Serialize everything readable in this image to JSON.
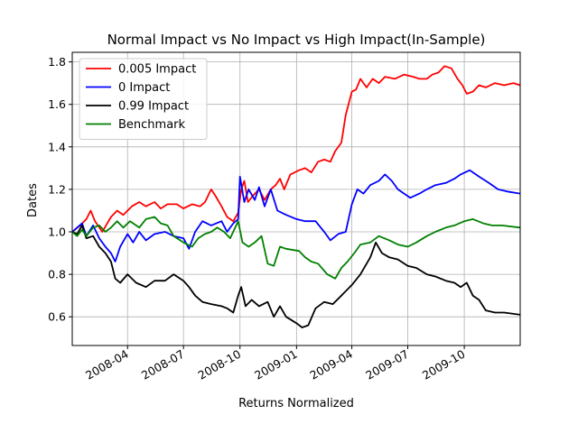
{
  "chart_data": {
    "type": "line",
    "title": "Normal Impact vs No Impact vs High Impact(In-Sample)",
    "xlabel": "Returns Normalized",
    "ylabel": "Dates",
    "xlim": [
      "2008-01-02",
      "2009-12-31"
    ],
    "ylim": [
      0.465,
      1.845
    ],
    "grid": true,
    "legend_position": "top-left",
    "x_tick_labels": [
      "2008-04",
      "2008-07",
      "2008-10",
      "2009-01",
      "2009-04",
      "2009-07",
      "2009-10"
    ],
    "x_tick_dates": [
      "2008-04-01",
      "2008-07-01",
      "2008-10-01",
      "2009-01-01",
      "2009-04-01",
      "2009-07-01",
      "2009-10-01"
    ],
    "y_tick_labels": [
      "0.6",
      "0.8",
      "1.0",
      "1.2",
      "1.4",
      "1.6",
      "1.8"
    ],
    "y_ticks": [
      0.6,
      0.8,
      1.0,
      1.2,
      1.4,
      1.6,
      1.8
    ],
    "series": [
      {
        "name": "0.005 Impact",
        "color": "#ff0000",
        "points": [
          [
            "2008-01-02",
            1.0
          ],
          [
            "2008-01-15",
            1.03
          ],
          [
            "2008-01-25",
            1.06
          ],
          [
            "2008-02-01",
            1.1
          ],
          [
            "2008-02-08",
            1.05
          ],
          [
            "2008-02-20",
            1.0
          ],
          [
            "2008-03-05",
            1.07
          ],
          [
            "2008-03-15",
            1.1
          ],
          [
            "2008-03-25",
            1.08
          ],
          [
            "2008-04-08",
            1.12
          ],
          [
            "2008-04-20",
            1.14
          ],
          [
            "2008-05-01",
            1.12
          ],
          [
            "2008-05-15",
            1.14
          ],
          [
            "2008-05-25",
            1.11
          ],
          [
            "2008-06-05",
            1.13
          ],
          [
            "2008-06-20",
            1.13
          ],
          [
            "2008-07-01",
            1.11
          ],
          [
            "2008-07-15",
            1.13
          ],
          [
            "2008-07-28",
            1.12
          ],
          [
            "2008-08-05",
            1.14
          ],
          [
            "2008-08-15",
            1.2
          ],
          [
            "2008-08-22",
            1.17
          ],
          [
            "2008-09-01",
            1.12
          ],
          [
            "2008-09-10",
            1.07
          ],
          [
            "2008-09-20",
            1.05
          ],
          [
            "2008-09-28",
            1.09
          ],
          [
            "2008-10-03",
            1.2
          ],
          [
            "2008-10-08",
            1.24
          ],
          [
            "2008-10-14",
            1.14
          ],
          [
            "2008-10-22",
            1.17
          ],
          [
            "2008-11-01",
            1.2
          ],
          [
            "2008-11-10",
            1.15
          ],
          [
            "2008-11-20",
            1.2
          ],
          [
            "2008-11-28",
            1.22
          ],
          [
            "2008-12-05",
            1.25
          ],
          [
            "2008-12-12",
            1.2
          ],
          [
            "2008-12-22",
            1.27
          ],
          [
            "2009-01-05",
            1.29
          ],
          [
            "2009-01-15",
            1.3
          ],
          [
            "2009-01-25",
            1.28
          ],
          [
            "2009-02-05",
            1.33
          ],
          [
            "2009-02-15",
            1.34
          ],
          [
            "2009-02-25",
            1.33
          ],
          [
            "2009-03-05",
            1.38
          ],
          [
            "2009-03-15",
            1.42
          ],
          [
            "2009-03-22",
            1.55
          ],
          [
            "2009-04-01",
            1.66
          ],
          [
            "2009-04-08",
            1.67
          ],
          [
            "2009-04-15",
            1.72
          ],
          [
            "2009-04-25",
            1.68
          ],
          [
            "2009-05-05",
            1.72
          ],
          [
            "2009-05-15",
            1.7
          ],
          [
            "2009-05-25",
            1.73
          ],
          [
            "2009-06-10",
            1.72
          ],
          [
            "2009-06-25",
            1.74
          ],
          [
            "2009-07-10",
            1.73
          ],
          [
            "2009-07-20",
            1.72
          ],
          [
            "2009-08-01",
            1.72
          ],
          [
            "2009-08-10",
            1.74
          ],
          [
            "2009-08-20",
            1.75
          ],
          [
            "2009-08-30",
            1.78
          ],
          [
            "2009-09-10",
            1.77
          ],
          [
            "2009-09-20",
            1.72
          ],
          [
            "2009-09-28",
            1.69
          ],
          [
            "2009-10-05",
            1.65
          ],
          [
            "2009-10-15",
            1.66
          ],
          [
            "2009-10-25",
            1.69
          ],
          [
            "2009-11-05",
            1.68
          ],
          [
            "2009-11-20",
            1.7
          ],
          [
            "2009-12-05",
            1.69
          ],
          [
            "2009-12-20",
            1.7
          ],
          [
            "2009-12-31",
            1.69
          ]
        ]
      },
      {
        "name": "0 Impact",
        "color": "#0000ff",
        "points": [
          [
            "2008-01-02",
            1.0
          ],
          [
            "2008-01-10",
            1.02
          ],
          [
            "2008-01-18",
            1.04
          ],
          [
            "2008-01-25",
            0.98
          ],
          [
            "2008-02-05",
            1.03
          ],
          [
            "2008-02-15",
            0.97
          ],
          [
            "2008-02-25",
            0.93
          ],
          [
            "2008-03-05",
            0.9
          ],
          [
            "2008-03-12",
            0.86
          ],
          [
            "2008-03-20",
            0.93
          ],
          [
            "2008-04-01",
            0.99
          ],
          [
            "2008-04-10",
            0.95
          ],
          [
            "2008-04-20",
            1.0
          ],
          [
            "2008-05-01",
            0.96
          ],
          [
            "2008-05-15",
            0.99
          ],
          [
            "2008-06-01",
            1.0
          ],
          [
            "2008-06-15",
            0.98
          ],
          [
            "2008-07-01",
            0.97
          ],
          [
            "2008-07-10",
            0.92
          ],
          [
            "2008-07-20",
            1.0
          ],
          [
            "2008-08-01",
            1.05
          ],
          [
            "2008-08-15",
            1.03
          ],
          [
            "2008-09-01",
            1.05
          ],
          [
            "2008-09-10",
            1.0
          ],
          [
            "2008-09-20",
            1.04
          ],
          [
            "2008-09-28",
            1.06
          ],
          [
            "2008-10-01",
            1.26
          ],
          [
            "2008-10-08",
            1.14
          ],
          [
            "2008-10-15",
            1.2
          ],
          [
            "2008-10-25",
            1.15
          ],
          [
            "2008-11-01",
            1.21
          ],
          [
            "2008-11-10",
            1.12
          ],
          [
            "2008-11-20",
            1.2
          ],
          [
            "2008-12-01",
            1.1
          ],
          [
            "2008-12-15",
            1.08
          ],
          [
            "2009-01-01",
            1.06
          ],
          [
            "2009-01-15",
            1.05
          ],
          [
            "2009-02-01",
            1.05
          ],
          [
            "2009-02-15",
            1.0
          ],
          [
            "2009-02-25",
            0.96
          ],
          [
            "2009-03-10",
            0.99
          ],
          [
            "2009-03-22",
            1.0
          ],
          [
            "2009-04-01",
            1.13
          ],
          [
            "2009-04-10",
            1.2
          ],
          [
            "2009-04-20",
            1.18
          ],
          [
            "2009-05-01",
            1.22
          ],
          [
            "2009-05-15",
            1.24
          ],
          [
            "2009-05-25",
            1.27
          ],
          [
            "2009-06-05",
            1.24
          ],
          [
            "2009-06-15",
            1.2
          ],
          [
            "2009-06-25",
            1.18
          ],
          [
            "2009-07-05",
            1.16
          ],
          [
            "2009-07-20",
            1.18
          ],
          [
            "2009-08-01",
            1.2
          ],
          [
            "2009-08-15",
            1.22
          ],
          [
            "2009-09-01",
            1.23
          ],
          [
            "2009-09-15",
            1.25
          ],
          [
            "2009-09-25",
            1.27
          ],
          [
            "2009-10-10",
            1.29
          ],
          [
            "2009-10-25",
            1.26
          ],
          [
            "2009-11-10",
            1.23
          ],
          [
            "2009-11-25",
            1.2
          ],
          [
            "2009-12-10",
            1.19
          ],
          [
            "2009-12-31",
            1.18
          ]
        ]
      },
      {
        "name": "0.99 Impact",
        "color": "#000000",
        "points": [
          [
            "2008-01-02",
            1.0
          ],
          [
            "2008-01-10",
            0.99
          ],
          [
            "2008-01-18",
            1.03
          ],
          [
            "2008-01-25",
            0.97
          ],
          [
            "2008-02-05",
            0.98
          ],
          [
            "2008-02-15",
            0.93
          ],
          [
            "2008-02-25",
            0.9
          ],
          [
            "2008-03-05",
            0.86
          ],
          [
            "2008-03-12",
            0.78
          ],
          [
            "2008-03-20",
            0.76
          ],
          [
            "2008-04-01",
            0.8
          ],
          [
            "2008-04-15",
            0.76
          ],
          [
            "2008-05-01",
            0.74
          ],
          [
            "2008-05-15",
            0.77
          ],
          [
            "2008-06-01",
            0.77
          ],
          [
            "2008-06-15",
            0.8
          ],
          [
            "2008-07-01",
            0.77
          ],
          [
            "2008-07-10",
            0.74
          ],
          [
            "2008-07-20",
            0.7
          ],
          [
            "2008-08-01",
            0.67
          ],
          [
            "2008-08-15",
            0.66
          ],
          [
            "2008-09-01",
            0.65
          ],
          [
            "2008-09-10",
            0.64
          ],
          [
            "2008-09-20",
            0.62
          ],
          [
            "2008-09-28",
            0.7
          ],
          [
            "2008-10-03",
            0.74
          ],
          [
            "2008-10-10",
            0.65
          ],
          [
            "2008-10-20",
            0.68
          ],
          [
            "2008-11-01",
            0.65
          ],
          [
            "2008-11-15",
            0.67
          ],
          [
            "2008-11-25",
            0.6
          ],
          [
            "2008-12-05",
            0.65
          ],
          [
            "2008-12-15",
            0.6
          ],
          [
            "2009-01-01",
            0.57
          ],
          [
            "2009-01-10",
            0.55
          ],
          [
            "2009-01-20",
            0.56
          ],
          [
            "2009-02-01",
            0.64
          ],
          [
            "2009-02-15",
            0.67
          ],
          [
            "2009-03-01",
            0.66
          ],
          [
            "2009-03-15",
            0.7
          ],
          [
            "2009-04-01",
            0.75
          ],
          [
            "2009-04-15",
            0.8
          ],
          [
            "2009-05-01",
            0.88
          ],
          [
            "2009-05-10",
            0.95
          ],
          [
            "2009-05-20",
            0.9
          ],
          [
            "2009-06-01",
            0.88
          ],
          [
            "2009-06-15",
            0.87
          ],
          [
            "2009-07-01",
            0.84
          ],
          [
            "2009-07-15",
            0.83
          ],
          [
            "2009-08-01",
            0.8
          ],
          [
            "2009-08-15",
            0.79
          ],
          [
            "2009-09-01",
            0.77
          ],
          [
            "2009-09-15",
            0.76
          ],
          [
            "2009-09-25",
            0.74
          ],
          [
            "2009-10-05",
            0.76
          ],
          [
            "2009-10-15",
            0.7
          ],
          [
            "2009-10-25",
            0.68
          ],
          [
            "2009-11-05",
            0.63
          ],
          [
            "2009-11-20",
            0.62
          ],
          [
            "2009-12-05",
            0.62
          ],
          [
            "2009-12-31",
            0.61
          ]
        ]
      },
      {
        "name": "Benchmark",
        "color": "#008000",
        "points": [
          [
            "2008-01-02",
            1.0
          ],
          [
            "2008-01-10",
            0.98
          ],
          [
            "2008-01-18",
            1.01
          ],
          [
            "2008-01-25",
            0.98
          ],
          [
            "2008-02-05",
            1.02
          ],
          [
            "2008-02-15",
            1.03
          ],
          [
            "2008-02-25",
            1.0
          ],
          [
            "2008-03-05",
            1.02
          ],
          [
            "2008-03-15",
            1.05
          ],
          [
            "2008-03-25",
            1.02
          ],
          [
            "2008-04-05",
            1.05
          ],
          [
            "2008-04-20",
            1.02
          ],
          [
            "2008-05-01",
            1.06
          ],
          [
            "2008-05-15",
            1.07
          ],
          [
            "2008-05-25",
            1.04
          ],
          [
            "2008-06-05",
            1.03
          ],
          [
            "2008-06-15",
            0.98
          ],
          [
            "2008-07-01",
            0.95
          ],
          [
            "2008-07-15",
            0.93
          ],
          [
            "2008-07-25",
            0.97
          ],
          [
            "2008-08-05",
            0.99
          ],
          [
            "2008-08-15",
            1.0
          ],
          [
            "2008-08-25",
            1.02
          ],
          [
            "2008-09-05",
            1.0
          ],
          [
            "2008-09-15",
            0.97
          ],
          [
            "2008-09-28",
            1.05
          ],
          [
            "2008-10-05",
            0.95
          ],
          [
            "2008-10-15",
            0.93
          ],
          [
            "2008-10-25",
            0.95
          ],
          [
            "2008-11-05",
            0.98
          ],
          [
            "2008-11-15",
            0.85
          ],
          [
            "2008-11-25",
            0.84
          ],
          [
            "2008-12-05",
            0.93
          ],
          [
            "2008-12-15",
            0.92
          ],
          [
            "2009-01-05",
            0.91
          ],
          [
            "2009-01-15",
            0.88
          ],
          [
            "2009-01-25",
            0.86
          ],
          [
            "2009-02-05",
            0.85
          ],
          [
            "2009-02-20",
            0.8
          ],
          [
            "2009-03-05",
            0.78
          ],
          [
            "2009-03-15",
            0.83
          ],
          [
            "2009-03-25",
            0.86
          ],
          [
            "2009-04-05",
            0.9
          ],
          [
            "2009-04-15",
            0.94
          ],
          [
            "2009-05-01",
            0.95
          ],
          [
            "2009-05-15",
            0.98
          ],
          [
            "2009-06-01",
            0.96
          ],
          [
            "2009-06-15",
            0.94
          ],
          [
            "2009-07-01",
            0.93
          ],
          [
            "2009-07-15",
            0.95
          ],
          [
            "2009-08-01",
            0.98
          ],
          [
            "2009-08-15",
            1.0
          ],
          [
            "2009-09-01",
            1.02
          ],
          [
            "2009-09-15",
            1.03
          ],
          [
            "2009-10-01",
            1.05
          ],
          [
            "2009-10-15",
            1.06
          ],
          [
            "2009-11-01",
            1.04
          ],
          [
            "2009-11-15",
            1.03
          ],
          [
            "2009-12-01",
            1.03
          ],
          [
            "2009-12-31",
            1.02
          ]
        ]
      }
    ]
  }
}
